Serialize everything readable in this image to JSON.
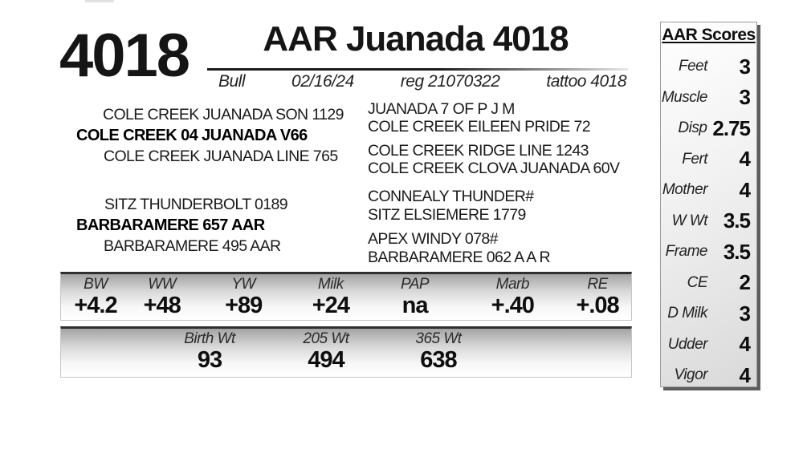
{
  "header": {
    "lot_number": "4018",
    "title": "AAR Juanada 4018",
    "sex": "Bull",
    "birth_date": "02/16/24",
    "reg": "reg 21070322",
    "tattoo": "tattoo 4018"
  },
  "pedigree": {
    "sire_group": {
      "grandsire": "COLE CREEK JUANADA SON 1129",
      "parent": "COLE CREEK 04 JUANADA V66",
      "granddam": "COLE CREEK JUANADA LINE 765"
    },
    "dam_group": {
      "grandsire": "SITZ THUNDERBOLT 0189",
      "parent": "BARBARAMERE 657 AAR",
      "granddam": "BARBARAMERE 495 AAR"
    },
    "great_grandparents": [
      "JUANADA 7 OF P J M",
      "COLE CREEK EILEEN PRIDE 72",
      "COLE CREEK RIDGE LINE 1243",
      "COLE CREEK CLOVA JUANADA 60V",
      "CONNEALY THUNDER#",
      "SITZ ELSIEMERE 1779",
      "APEX WINDY 078#",
      "BARBARAMERE 062 A A R"
    ]
  },
  "epd": {
    "columns": [
      "BW",
      "WW",
      "YW",
      "Milk",
      "PAP",
      "Marb",
      "RE"
    ],
    "values": [
      "+4.2",
      "+48",
      "+89",
      "+24",
      "na",
      "+.40",
      "+.08"
    ]
  },
  "weights": {
    "columns": [
      "Birth Wt",
      "205 Wt",
      "365 Wt"
    ],
    "values": [
      "93",
      "494",
      "638"
    ]
  },
  "scores": {
    "title": "AAR Scores",
    "items": [
      {
        "label": "Feet",
        "value": "3"
      },
      {
        "label": "Muscle",
        "value": "3"
      },
      {
        "label": "Disp",
        "value": "2.75"
      },
      {
        "label": "Fert",
        "value": "4"
      },
      {
        "label": "Mother",
        "value": "4"
      },
      {
        "label": "W Wt",
        "value": "3.5"
      },
      {
        "label": "Frame",
        "value": "3.5"
      },
      {
        "label": "CE",
        "value": "2"
      },
      {
        "label": "D Milk",
        "value": "3"
      },
      {
        "label": "Udder",
        "value": "4"
      },
      {
        "label": "Vigor",
        "value": "4"
      }
    ]
  }
}
